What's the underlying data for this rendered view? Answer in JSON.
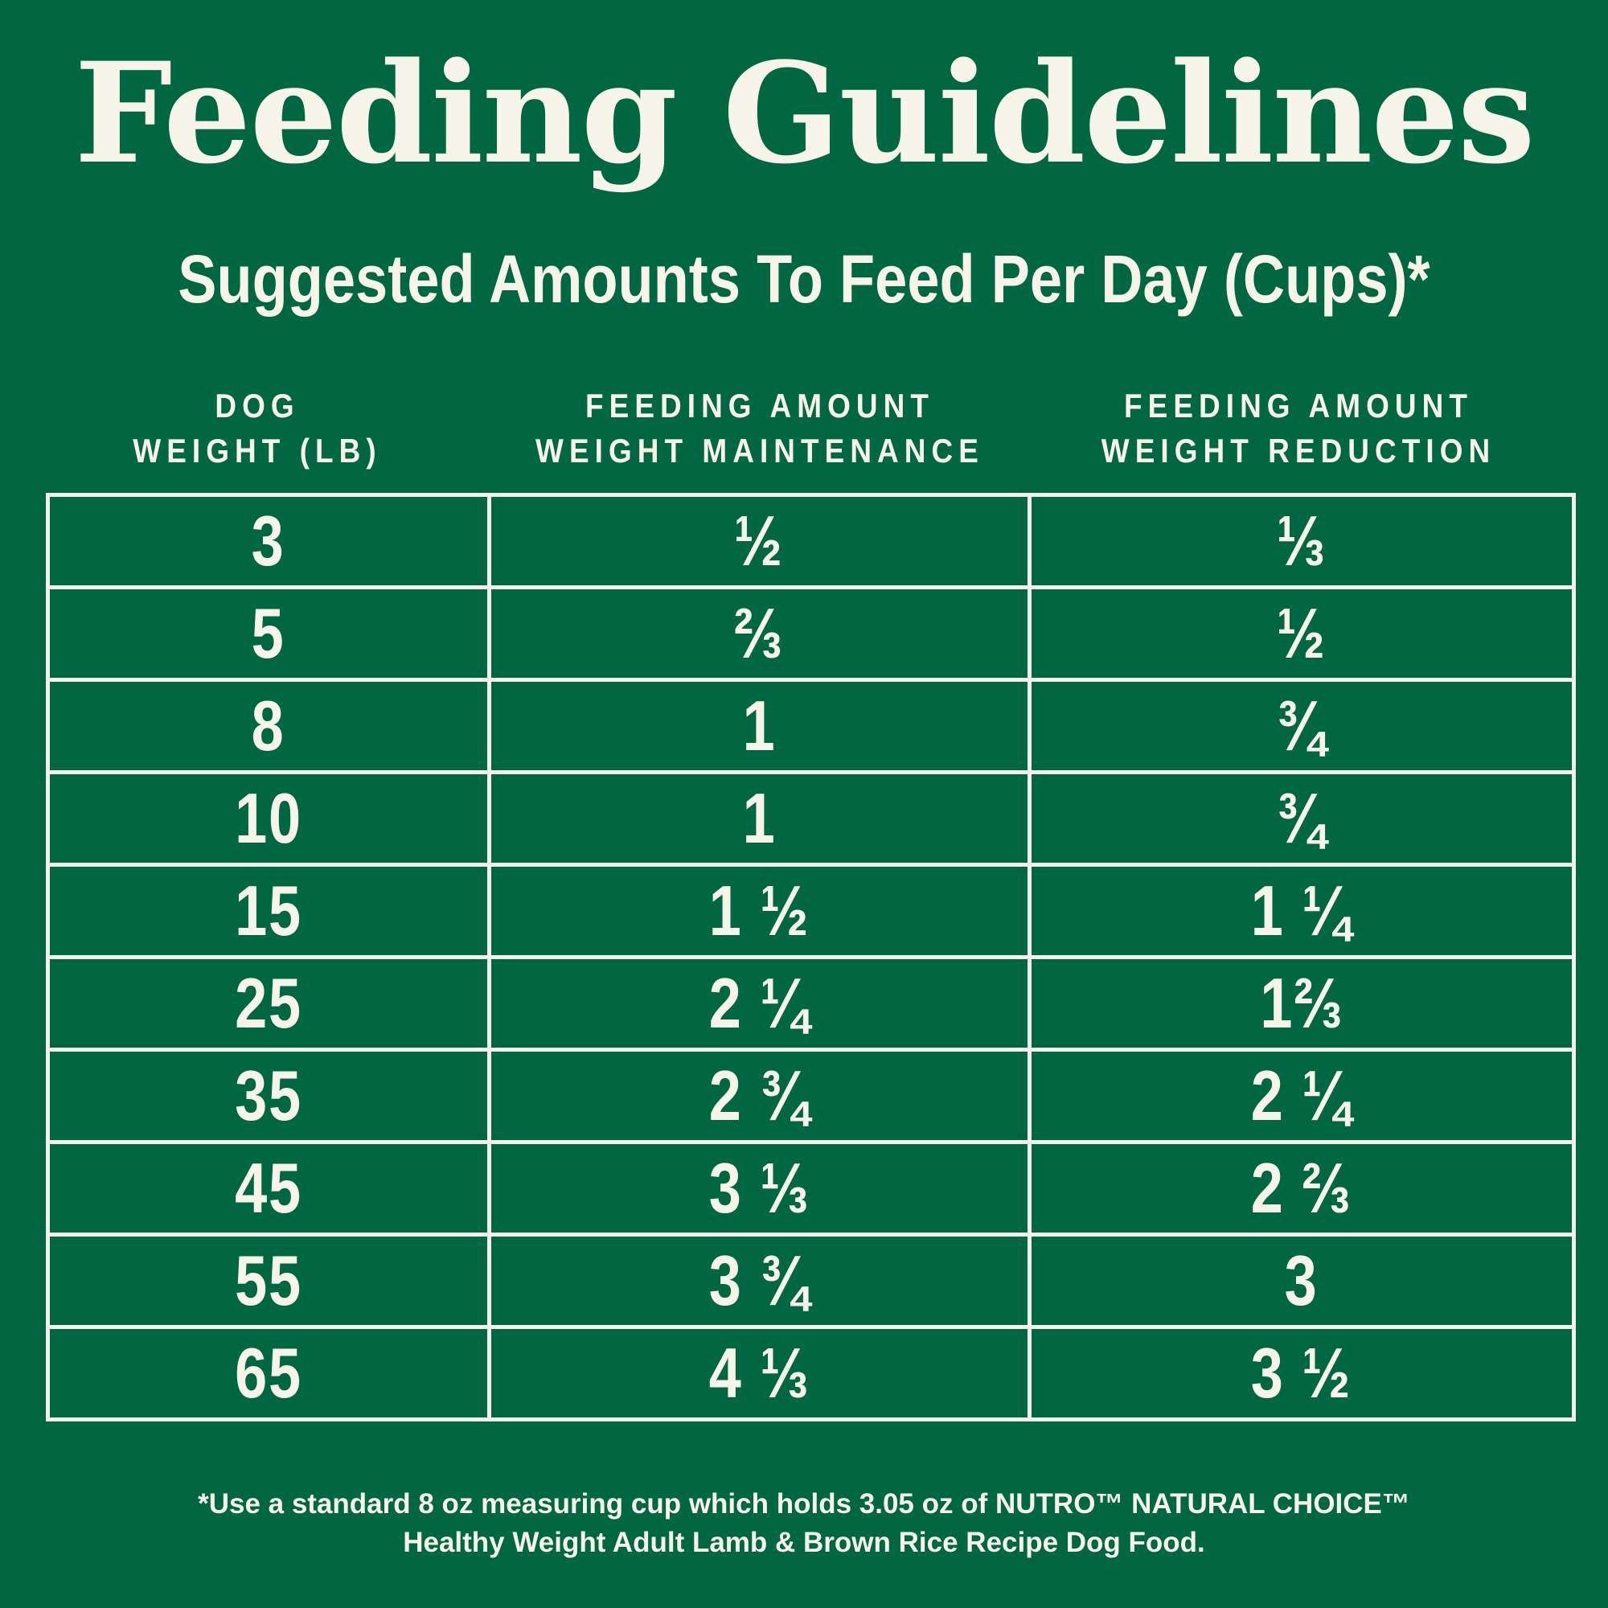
{
  "title": "Feeding Guidelines",
  "subtitle": "Suggested Amounts To Feed Per Day (Cups)*",
  "table": {
    "headers": [
      {
        "line1": "DOG",
        "line2": "WEIGHT (LB)"
      },
      {
        "line1": "FEEDING AMOUNT",
        "line2": "WEIGHT MAINTENANCE"
      },
      {
        "line1": "FEEDING AMOUNT",
        "line2": "WEIGHT REDUCTION"
      }
    ],
    "rows": [
      [
        "3",
        "½",
        "⅓"
      ],
      [
        "5",
        "⅔",
        "½"
      ],
      [
        "8",
        "1",
        "¾"
      ],
      [
        "10",
        "1",
        "¾"
      ],
      [
        "15",
        "1 ½",
        "1 ¼"
      ],
      [
        "25",
        "2 ¼",
        "1⅔"
      ],
      [
        "35",
        "2 ¾",
        "2 ¼"
      ],
      [
        "45",
        "3 ⅓",
        "2 ⅔"
      ],
      [
        "55",
        "3 ¾",
        "3"
      ],
      [
        "65",
        "4 ⅓",
        "3 ½"
      ]
    ]
  },
  "footnote": {
    "line1": "*Use a standard 8 oz measuring cup which holds 3.05 oz of NUTRO™ NATURAL CHOICE™",
    "line2": "Healthy Weight Adult Lamb & Brown Rice Recipe Dog Food."
  },
  "colors": {
    "background": "#006742",
    "foreground": "#f7f4ea",
    "grid": "#f4f2ea"
  }
}
